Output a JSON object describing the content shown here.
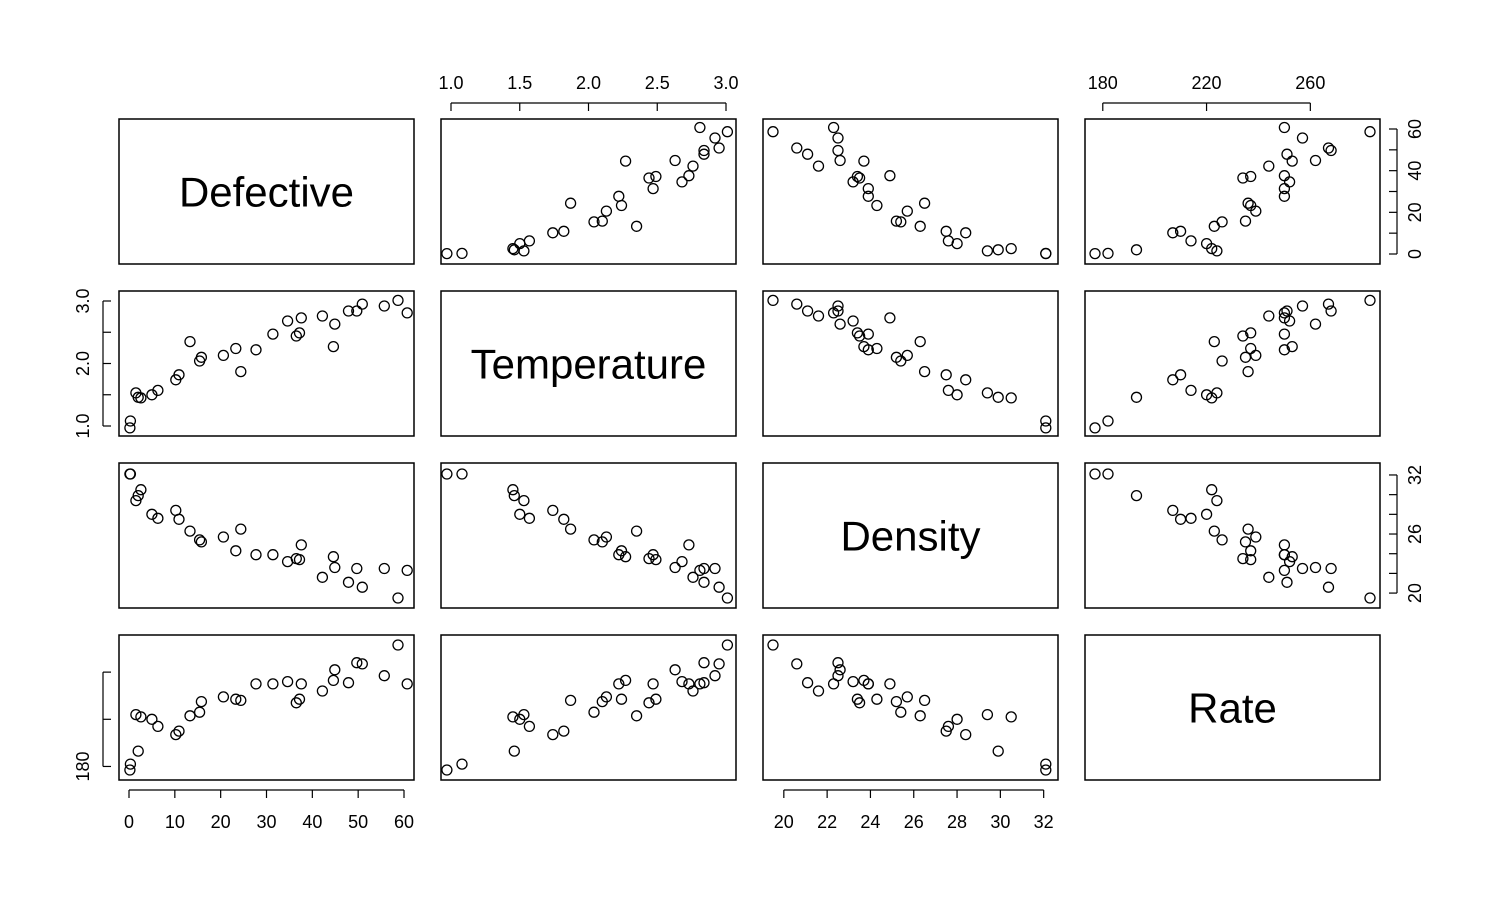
{
  "chart_data": {
    "type": "scatter",
    "title": "",
    "layout": "scatterplot-matrix",
    "variables": [
      "Defective",
      "Temperature",
      "Density",
      "Rate"
    ],
    "ranges": {
      "Defective": [
        0,
        60
      ],
      "Temperature": [
        1.0,
        3.0
      ],
      "Density": [
        19.5,
        32.2
      ],
      "Rate": [
        177,
        283
      ]
    },
    "ticks": {
      "Defective": [
        "0",
        "10",
        "20",
        "30",
        "40",
        "50",
        "60"
      ],
      "Temperature": [
        "1.0",
        "1.5",
        "2.0",
        "2.5",
        "3.0"
      ],
      "Density": [
        "20",
        "22",
        "24",
        "26",
        "28",
        "30",
        "32"
      ],
      "Rate": [
        "180",
        "220",
        "260"
      ]
    },
    "minor_ticks": {
      "Temperature": [
        "1.0",
        "2.0",
        "3.0"
      ],
      "Density": [
        "20",
        "26",
        "32"
      ],
      "Rate": [
        "180",
        "240"
      ],
      "Defective": [
        "0",
        "20",
        "40",
        "60"
      ]
    },
    "observations": [
      {
        "Defective": 0.2,
        "Temperature": 0.97,
        "Density": 32.1,
        "Rate": 177
      },
      {
        "Defective": 0.3,
        "Temperature": 1.08,
        "Density": 32.1,
        "Rate": 182
      },
      {
        "Defective": 1.5,
        "Temperature": 1.53,
        "Density": 29.4,
        "Rate": 224
      },
      {
        "Defective": 2.0,
        "Temperature": 1.46,
        "Density": 29.9,
        "Rate": 193
      },
      {
        "Defective": 2.6,
        "Temperature": 1.45,
        "Density": 30.5,
        "Rate": 222
      },
      {
        "Defective": 5.0,
        "Temperature": 1.5,
        "Density": 28.0,
        "Rate": 220
      },
      {
        "Defective": 6.3,
        "Temperature": 1.57,
        "Density": 27.6,
        "Rate": 214
      },
      {
        "Defective": 10.2,
        "Temperature": 1.74,
        "Density": 28.4,
        "Rate": 207
      },
      {
        "Defective": 10.9,
        "Temperature": 1.82,
        "Density": 27.5,
        "Rate": 210
      },
      {
        "Defective": 13.3,
        "Temperature": 2.35,
        "Density": 26.3,
        "Rate": 223
      },
      {
        "Defective": 15.4,
        "Temperature": 2.04,
        "Density": 25.4,
        "Rate": 226
      },
      {
        "Defective": 15.8,
        "Temperature": 2.1,
        "Density": 25.2,
        "Rate": 235
      },
      {
        "Defective": 20.6,
        "Temperature": 2.13,
        "Density": 25.7,
        "Rate": 239
      },
      {
        "Defective": 23.3,
        "Temperature": 2.24,
        "Density": 24.3,
        "Rate": 237
      },
      {
        "Defective": 24.4,
        "Temperature": 1.87,
        "Density": 26.5,
        "Rate": 236
      },
      {
        "Defective": 27.7,
        "Temperature": 2.22,
        "Density": 23.9,
        "Rate": 250
      },
      {
        "Defective": 31.4,
        "Temperature": 2.47,
        "Density": 23.9,
        "Rate": 250
      },
      {
        "Defective": 34.6,
        "Temperature": 2.68,
        "Density": 23.2,
        "Rate": 252
      },
      {
        "Defective": 36.5,
        "Temperature": 2.44,
        "Density": 23.5,
        "Rate": 234
      },
      {
        "Defective": 37.2,
        "Temperature": 2.49,
        "Density": 23.4,
        "Rate": 237
      },
      {
        "Defective": 37.6,
        "Temperature": 2.73,
        "Density": 24.9,
        "Rate": 250
      },
      {
        "Defective": 42.2,
        "Temperature": 2.76,
        "Density": 21.6,
        "Rate": 244
      },
      {
        "Defective": 44.6,
        "Temperature": 2.27,
        "Density": 23.7,
        "Rate": 253
      },
      {
        "Defective": 44.9,
        "Temperature": 2.63,
        "Density": 22.6,
        "Rate": 262
      },
      {
        "Defective": 47.9,
        "Temperature": 2.84,
        "Density": 21.1,
        "Rate": 251
      },
      {
        "Defective": 49.7,
        "Temperature": 2.84,
        "Density": 22.5,
        "Rate": 268
      },
      {
        "Defective": 50.9,
        "Temperature": 2.95,
        "Density": 20.6,
        "Rate": 267
      },
      {
        "Defective": 55.7,
        "Temperature": 2.92,
        "Density": 22.5,
        "Rate": 257
      },
      {
        "Defective": 58.7,
        "Temperature": 3.01,
        "Density": 19.5,
        "Rate": 283
      },
      {
        "Defective": 60.7,
        "Temperature": 2.81,
        "Density": 22.3,
        "Rate": 250
      }
    ]
  }
}
